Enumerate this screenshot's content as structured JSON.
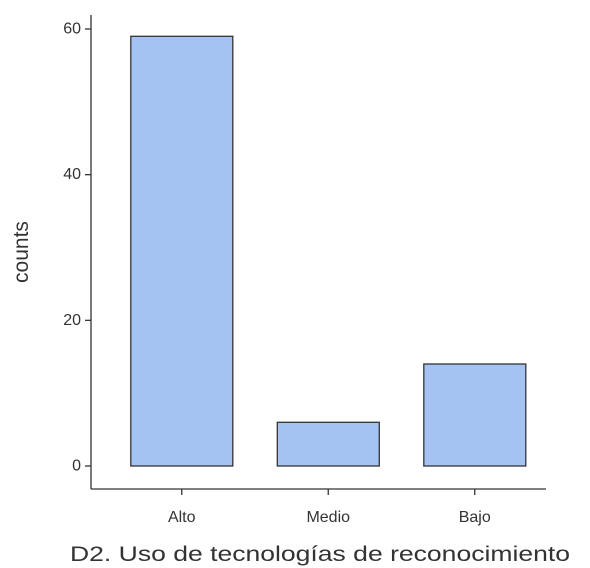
{
  "chart_data": {
    "type": "bar",
    "title": "",
    "xlabel": "D2. Uso de tecnologías de reconocimiento",
    "ylabel": "counts",
    "categories": [
      "Alto",
      "Medio",
      "Bajo"
    ],
    "values": [
      59,
      6,
      14
    ],
    "ylim": [
      0,
      62
    ],
    "yticks": [
      0,
      20,
      40,
      60
    ],
    "grid": false,
    "legend": "none",
    "colors": {
      "bar_fill": "#a4c3f2",
      "bar_stroke": "#333333",
      "axis": "#333333",
      "text": "#333333"
    }
  }
}
